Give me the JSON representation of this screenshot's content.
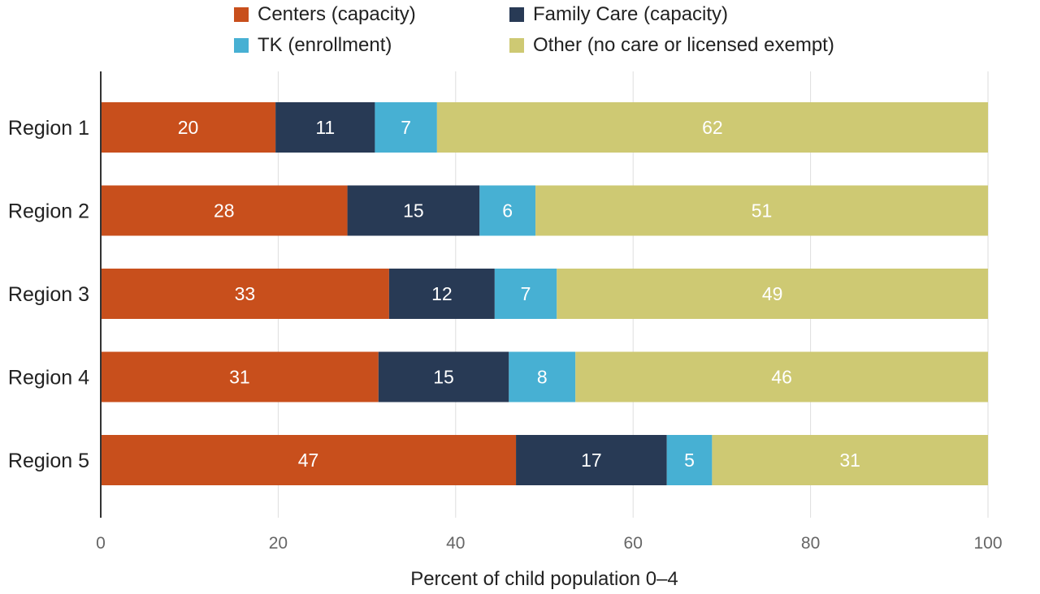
{
  "chart_data": {
    "type": "bar",
    "orientation": "horizontal",
    "stacked": true,
    "categories": [
      "Region 1",
      "Region 2",
      "Region 3",
      "Region 4",
      "Region 5"
    ],
    "series": [
      {
        "name": "Centers (capacity)",
        "color": "#c84f1c",
        "values": [
          19.7,
          27.8,
          32.5,
          31.3,
          46.8
        ]
      },
      {
        "name": "Family Care (capacity)",
        "color": "#283a55",
        "values": [
          11.2,
          14.9,
          11.9,
          14.7,
          17.0
        ]
      },
      {
        "name": "TK (enrollment)",
        "color": "#47b0d3",
        "values": [
          7.0,
          6.3,
          7.0,
          7.5,
          5.1
        ]
      },
      {
        "name": "Other (no care or licensed exempt)",
        "color": "#cec973",
        "values": [
          62.1,
          51.0,
          48.6,
          46.5,
          31.1
        ]
      }
    ],
    "data_labels": [
      [
        "20",
        "11",
        "7",
        "62"
      ],
      [
        "28",
        "15",
        "6",
        "51"
      ],
      [
        "33",
        "12",
        "7",
        "49"
      ],
      [
        "31",
        "15",
        "8",
        "46"
      ],
      [
        "47",
        "17",
        "5",
        "31"
      ]
    ],
    "xlabel": "Percent of child population 0–4",
    "xlim": [
      0,
      100
    ],
    "xticks": [
      0,
      20,
      40,
      60,
      80,
      100
    ],
    "grid": "vertical",
    "legend_position": "top"
  }
}
